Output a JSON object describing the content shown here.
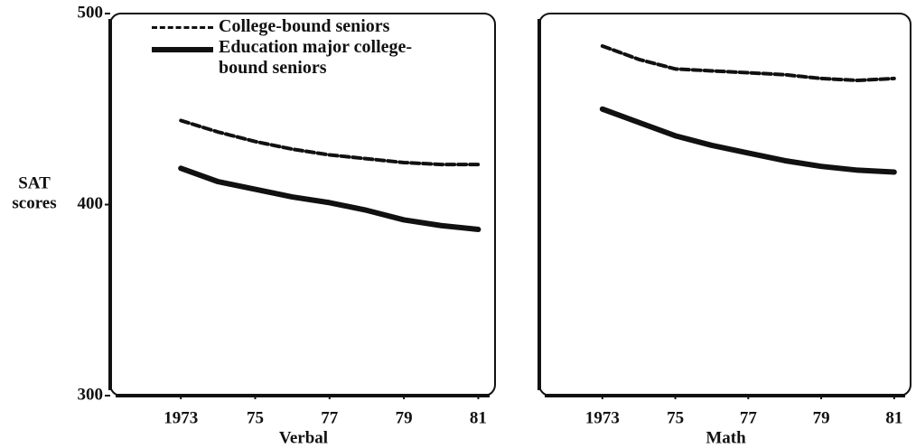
{
  "chart_data": [
    {
      "type": "line",
      "xlabel": "Verbal",
      "ylabel": [
        "SAT",
        "scores"
      ],
      "x": [
        1973,
        1974,
        1975,
        1976,
        1977,
        1978,
        1979,
        1980,
        1981
      ],
      "xlim": [
        1971.1,
        1981.5
      ],
      "xticks": [
        1973,
        {
          "value": 1975,
          "label": "75"
        },
        {
          "value": 1977,
          "label": "77"
        },
        {
          "value": 1979,
          "label": "79"
        },
        {
          "value": 1981,
          "label": "81"
        }
      ],
      "ylim": [
        300,
        500
      ],
      "yticks": [
        300,
        400,
        500
      ],
      "legend": "upper left",
      "series": [
        {
          "name": "College-bound seniors",
          "color": "#111111",
          "dashed": true,
          "values": [
            444,
            438,
            433,
            429,
            426,
            424,
            422,
            421,
            421
          ]
        },
        {
          "name": "Education major college-bound seniors",
          "color": "#111111",
          "dashed": false,
          "values": [
            419,
            412,
            408,
            404,
            401,
            397,
            392,
            389,
            387
          ]
        }
      ]
    },
    {
      "type": "line",
      "xlabel": "Math",
      "x": [
        1973,
        1974,
        1975,
        1976,
        1977,
        1978,
        1979,
        1980,
        1981
      ],
      "xlim": [
        1971.27,
        1981.5
      ],
      "xticks": [
        1973,
        {
          "value": 1975,
          "label": "75"
        },
        {
          "value": 1977,
          "label": "77"
        },
        {
          "value": 1979,
          "label": "79"
        },
        {
          "value": 1981,
          "label": "81"
        }
      ],
      "ylim": [
        300,
        500
      ],
      "series": [
        {
          "color": "#111111",
          "dashed": true,
          "values": [
            483,
            476,
            471,
            470,
            469,
            468,
            466,
            465,
            466
          ]
        },
        {
          "color": "#111111",
          "dashed": false,
          "values": [
            450,
            443,
            436,
            431,
            427,
            423,
            420,
            418,
            417
          ]
        }
      ]
    }
  ]
}
